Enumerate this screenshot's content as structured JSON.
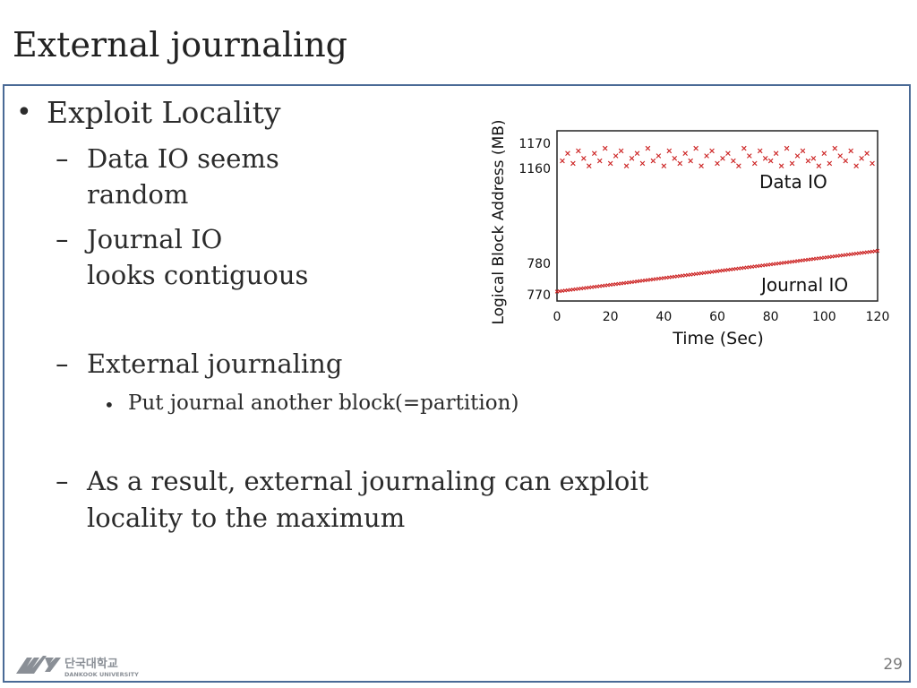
{
  "slide": {
    "title": "External journaling",
    "page_number": "29"
  },
  "content": {
    "bullet": "Exploit Locality",
    "sub1_line1": "Data IO seems",
    "sub1_line2": "random",
    "sub2_line1": "Journal IO",
    "sub2_line2": "looks contiguous",
    "sub3": "External journaling",
    "sub3_detail": "Put journal another block(=partition)",
    "sub4_line1": "As a result, external journaling can exploit",
    "sub4_line2": "locality to the maximum"
  },
  "logo": {
    "korean": "단국대학교",
    "english": "DANKOOK UNIVERSITY"
  },
  "chart_data": {
    "type": "scatter",
    "xlabel": "Time (Sec)",
    "ylabel": "Logical Block Address (MB)",
    "xlim": [
      0,
      120
    ],
    "xticks": [
      "0",
      "20",
      "40",
      "60",
      "80",
      "100",
      "120"
    ],
    "y_ticks_upper": [
      "1170",
      "1160"
    ],
    "y_ticks_lower": [
      "780",
      "770"
    ],
    "ylim_lower": [
      770,
      780
    ],
    "ylim_upper": [
      1160,
      1170
    ],
    "series": [
      {
        "name": "Data IO",
        "color": "#cc2222",
        "marker": "x",
        "description_range": [
          1160,
          1170
        ],
        "x": [
          2,
          4,
          6,
          8,
          10,
          12,
          14,
          16,
          18,
          20,
          22,
          24,
          26,
          28,
          30,
          32,
          34,
          36,
          38,
          40,
          42,
          44,
          46,
          48,
          50,
          52,
          54,
          56,
          58,
          60,
          62,
          64,
          66,
          68,
          70,
          72,
          74,
          76,
          78,
          80,
          82,
          84,
          86,
          88,
          90,
          92,
          94,
          96,
          98,
          100,
          102,
          104,
          106,
          108,
          110,
          112,
          114,
          116,
          118
        ],
        "y": [
          1163,
          1166,
          1162,
          1167,
          1164,
          1161,
          1166,
          1163,
          1168,
          1162,
          1165,
          1167,
          1161,
          1164,
          1166,
          1162,
          1168,
          1163,
          1165,
          1161,
          1167,
          1164,
          1162,
          1166,
          1163,
          1168,
          1161,
          1165,
          1167,
          1162,
          1164,
          1166,
          1163,
          1161,
          1168,
          1165,
          1162,
          1167,
          1164,
          1163,
          1166,
          1161,
          1168,
          1162,
          1165,
          1167,
          1163,
          1164,
          1161,
          1166,
          1162,
          1168,
          1165,
          1163,
          1167,
          1161,
          1164,
          1166,
          1162
        ]
      },
      {
        "name": "Journal IO",
        "color": "#cc2222",
        "marker": "x",
        "x": [
          0,
          120
        ],
        "y": [
          771,
          784
        ]
      }
    ]
  }
}
